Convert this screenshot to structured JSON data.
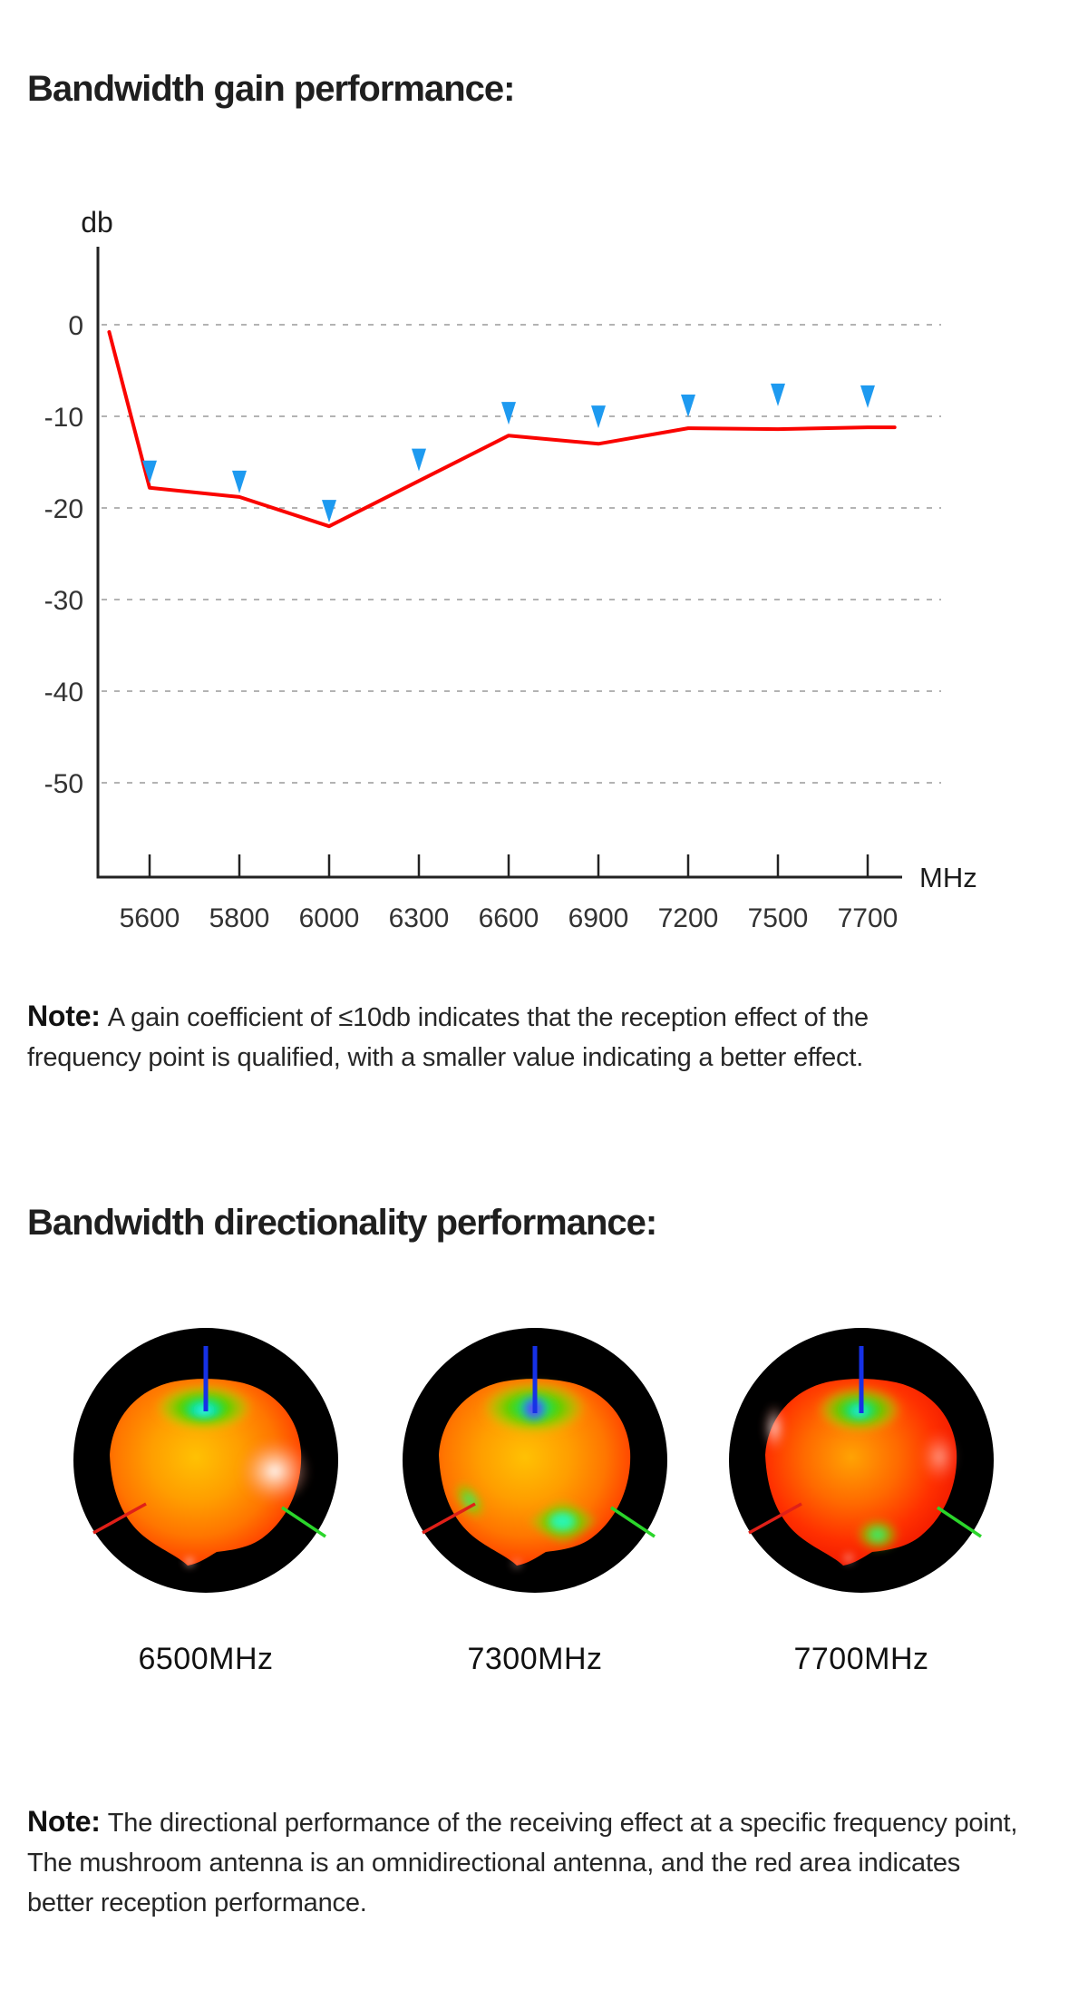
{
  "section1": {
    "title": "Bandwidth gain performance:"
  },
  "chart_data": {
    "type": "line",
    "title": "Bandwidth gain performance",
    "xlabel": "MHz",
    "ylabel": "db",
    "x_categories": [
      "5600",
      "5800",
      "6000",
      "6300",
      "6600",
      "6900",
      "7200",
      "7500",
      "7700"
    ],
    "y_ticks": [
      0,
      -10,
      -20,
      -30,
      -40,
      -50
    ],
    "y_tick_labels": [
      "0",
      "-10",
      "-20",
      "-30",
      "-40",
      "-50"
    ],
    "ylim": [
      -57,
      3
    ],
    "grid": "horizontal-dashed",
    "legend": "none",
    "series": [
      {
        "name": "gain curve",
        "type": "line",
        "color": "#fa0400",
        "points": [
          {
            "pos": -0.45,
            "db": -0.8
          },
          {
            "pos": 0,
            "db": -17.8
          },
          {
            "pos": 1,
            "db": -18.8
          },
          {
            "pos": 2,
            "db": -22.0
          },
          {
            "pos": 3,
            "db": -17.05
          },
          {
            "pos": 4,
            "db": -12.1
          },
          {
            "pos": 5,
            "db": -13.0
          },
          {
            "pos": 6,
            "db": -11.3
          },
          {
            "pos": 7,
            "db": -11.4
          },
          {
            "pos": 8,
            "db": -11.2
          },
          {
            "pos": 8.3,
            "db": -11.2
          }
        ]
      },
      {
        "name": "frequency point markers",
        "type": "scatter",
        "marker": "triangle-down",
        "color": "#1e9af0",
        "points": [
          {
            "pos": 0,
            "db": -17.3
          },
          {
            "pos": 1,
            "db": -18.4
          },
          {
            "pos": 2,
            "db": -21.6
          },
          {
            "pos": 3,
            "db": -16.0
          },
          {
            "pos": 4,
            "db": -10.9
          },
          {
            "pos": 5,
            "db": -11.3
          },
          {
            "pos": 6,
            "db": -10.1
          },
          {
            "pos": 7,
            "db": -8.9
          },
          {
            "pos": 8,
            "db": -9.1
          }
        ]
      }
    ]
  },
  "note1": {
    "prefix": "Note:",
    "line1": "A gain coefficient of ≤10db indicates that the reception effect of the",
    "line2": "frequency point is qualified, with a smaller value indicating a better effect."
  },
  "section2": {
    "title": "Bandwidth directionality performance:"
  },
  "patterns": {
    "items": [
      {
        "label": "6500MHz"
      },
      {
        "label": "7300MHz"
      },
      {
        "label": "7700MHz"
      }
    ]
  },
  "note2": {
    "prefix": "Note:",
    "line1": "The directional performance of the receiving effect at a specific frequency point,",
    "line2": "The mushroom antenna is an omnidirectional antenna, and the red area indicates",
    "line3": "better reception performance."
  },
  "colors": {
    "line_red": "#fa0400",
    "marker_blue": "#1e9af0",
    "axis": "#222222",
    "grid": "#b3b3b3",
    "text": "#1c1c1c"
  }
}
